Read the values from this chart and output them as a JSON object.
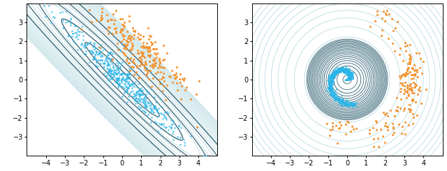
{
  "left_xlim": [
    -5,
    5
  ],
  "left_ylim": [
    -4,
    4
  ],
  "right_xlim": [
    -5,
    5
  ],
  "right_ylim": [
    -4,
    4
  ],
  "left_xticks": [
    -4,
    -3,
    -2,
    -1,
    0,
    1,
    2,
    3,
    4
  ],
  "left_yticks": [
    -3,
    -2,
    -1,
    0,
    1,
    2,
    3
  ],
  "right_xticks": [
    -4,
    -3,
    -2,
    -1,
    0,
    1,
    2,
    3,
    4
  ],
  "right_yticks": [
    -3,
    -2,
    -1,
    0,
    1,
    2,
    3
  ],
  "cyan_color": "#29b5e8",
  "orange_color": "#f5922d",
  "contour_light_color": "#9ecdd6",
  "contour_dark_color": "#3a6575",
  "figsize": [
    6.4,
    2.45
  ],
  "dpi": 100
}
